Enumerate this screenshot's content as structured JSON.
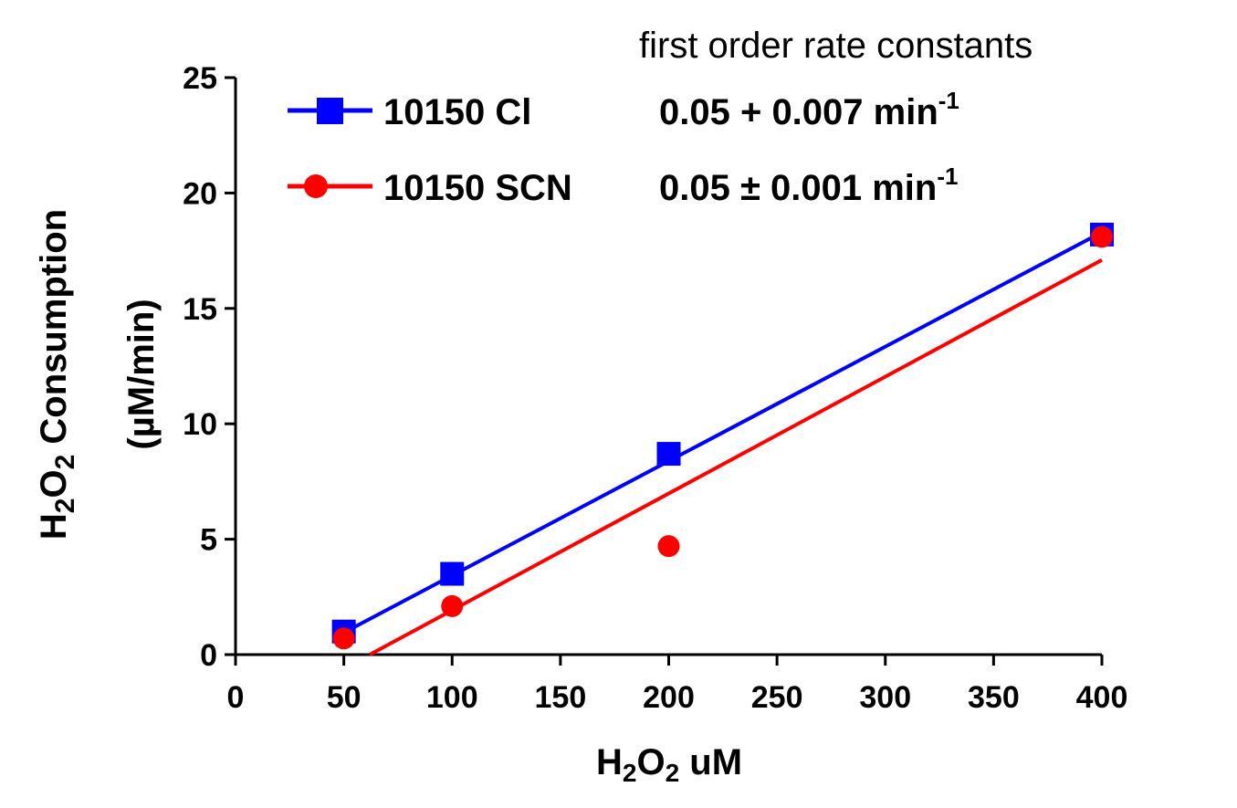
{
  "chart_data": {
    "type": "scatter",
    "annotation": "first order rate constants",
    "xlabel": {
      "base": "H",
      "sub1": "2",
      "mid": "O",
      "sub2": "2",
      "rest": " uM"
    },
    "ylabel": {
      "line1": {
        "base": "H",
        "sub1": "2",
        "mid": "O",
        "sub2": "2",
        "rest": " Consumption"
      },
      "line2": "(µM/min)"
    },
    "xlim": [
      0,
      400
    ],
    "ylim": [
      0,
      25
    ],
    "x_ticks": [
      "0",
      "50",
      "100",
      "150",
      "200",
      "250",
      "300",
      "350",
      "400"
    ],
    "y_ticks": [
      "0",
      "5",
      "10",
      "15",
      "20",
      "25"
    ],
    "series": [
      {
        "name": "10150 Cl",
        "rate_text": "0.05 + 0.007 min",
        "rate_sup": "-1",
        "color": "#0000ff",
        "marker": "square",
        "x": [
          50,
          100,
          200,
          400
        ],
        "y": [
          1.0,
          3.5,
          8.7,
          18.2
        ],
        "fit": {
          "x": [
            50,
            400
          ],
          "y": [
            0.95,
            18.3
          ]
        }
      },
      {
        "name": "10150 SCN",
        "rate_text": "0.05 ± 0.001 min",
        "rate_sup": "-1",
        "color": "#ff0000",
        "marker": "circle",
        "x": [
          50,
          100,
          200,
          400
        ],
        "y": [
          0.7,
          2.1,
          4.7,
          18.1
        ],
        "fit": {
          "x": [
            62,
            400
          ],
          "y": [
            0.0,
            17.1
          ]
        }
      }
    ]
  }
}
